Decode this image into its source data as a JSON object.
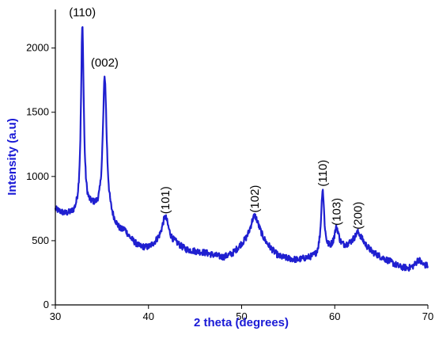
{
  "chart_data": {
    "type": "line",
    "xlabel": "2 theta (degrees)",
    "ylabel": "Intensity (a.u)",
    "xlim": [
      30,
      70
    ],
    "ylim": [
      0,
      2300
    ],
    "xticks": [
      30,
      40,
      50,
      60,
      70
    ],
    "yticks": [
      0,
      500,
      1000,
      1500,
      2000
    ],
    "grid": false,
    "color": "#1f1fd0",
    "baseline_profile": [
      [
        30,
        740
      ],
      [
        31,
        700
      ],
      [
        32,
        690
      ],
      [
        34,
        740
      ],
      [
        36,
        640
      ],
      [
        37,
        560
      ],
      [
        38,
        500
      ],
      [
        39,
        440
      ],
      [
        40,
        430
      ],
      [
        41,
        470
      ],
      [
        43,
        460
      ],
      [
        44,
        420
      ],
      [
        46,
        400
      ],
      [
        48,
        360
      ],
      [
        49,
        380
      ],
      [
        50,
        440
      ],
      [
        52,
        480
      ],
      [
        53,
        420
      ],
      [
        54,
        360
      ],
      [
        56,
        340
      ],
      [
        57,
        355
      ],
      [
        58,
        360
      ],
      [
        59,
        400
      ],
      [
        60,
        420
      ],
      [
        61,
        440
      ],
      [
        62,
        470
      ],
      [
        63,
        460
      ],
      [
        64,
        400
      ],
      [
        66,
        330
      ],
      [
        67,
        290
      ],
      [
        68,
        280
      ],
      [
        69,
        300
      ],
      [
        70,
        300
      ]
    ],
    "peaks": [
      {
        "x": 32.9,
        "y": 2160,
        "width": 0.18,
        "label": "(110)"
      },
      {
        "x": 35.3,
        "y": 1770,
        "width": 0.25,
        "label": "(002)"
      },
      {
        "x": 37.4,
        "y": 570,
        "width": 0.3,
        "label": ""
      },
      {
        "x": 41.8,
        "y": 680,
        "width": 0.45,
        "label": "(101)"
      },
      {
        "x": 51.4,
        "y": 690,
        "width": 0.6,
        "label": "(102)"
      },
      {
        "x": 58.7,
        "y": 890,
        "width": 0.2,
        "label": "(110)"
      },
      {
        "x": 60.2,
        "y": 590,
        "width": 0.3,
        "label": "(103)"
      },
      {
        "x": 62.5,
        "y": 560,
        "width": 0.45,
        "label": "(200)"
      },
      {
        "x": 69.0,
        "y": 350,
        "width": 0.3,
        "label": ""
      }
    ]
  }
}
